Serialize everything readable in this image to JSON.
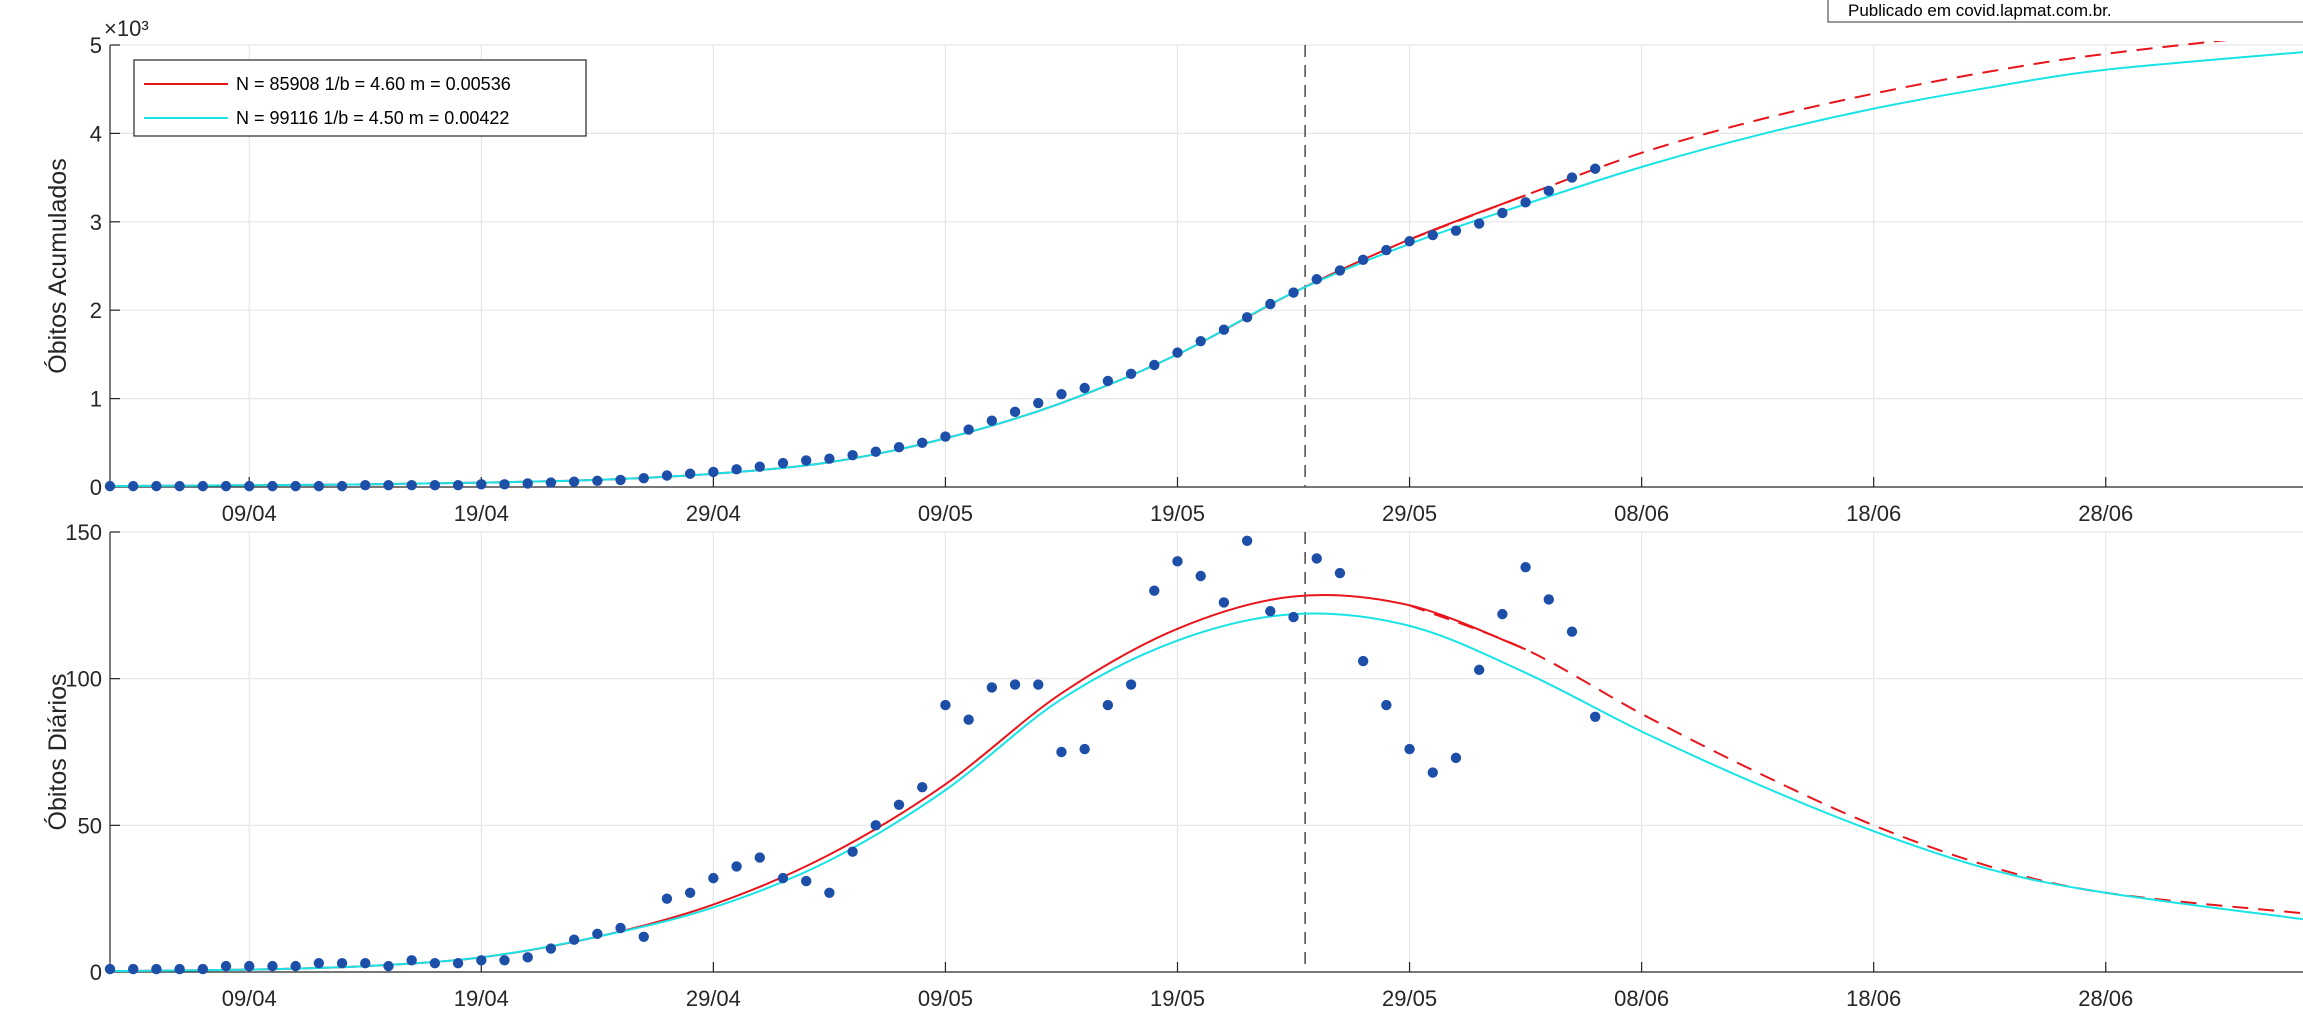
{
  "credit": "Publicado em covid.lapmat.com.br.",
  "colors": {
    "red_fit": "#e8151b",
    "cyan_fit": "#18e3e6",
    "points": "#1e4fa8",
    "grid": "#e6e6e6",
    "axis": "#262626",
    "vline": "#555555"
  },
  "legend": {
    "red_label": "N = 85908 1/b = 4.60 m = 0.00536",
    "cyan_label": "N = 99116 1/b = 4.50 m = 0.00422"
  },
  "top_axis": {
    "ylabel": "Óbitos Acumulados",
    "exponent": "×10³",
    "yticks": [
      "0",
      "1",
      "2",
      "3",
      "4",
      "5"
    ]
  },
  "bottom_axis": {
    "ylabel": "Óbitos Diários",
    "yticks": [
      "0",
      "50",
      "100",
      "150"
    ]
  },
  "x_ticks": [
    "09/04",
    "19/04",
    "29/04",
    "09/05",
    "19/05",
    "29/05",
    "08/06",
    "18/06",
    "28/06"
  ],
  "chart_data": [
    {
      "type": "line",
      "ylabel": "Óbitos Acumulados",
      "y_multiplier": 1000,
      "ylim": [
        0,
        5
      ],
      "x_day_offset_from_first_tick_range": [
        -6,
        88.5
      ],
      "x_tick_days": [
        0,
        10,
        20,
        30,
        40,
        50,
        60,
        70,
        80
      ],
      "vline_day": 45.5,
      "grid": true,
      "legend_position": "top-left",
      "series": [
        {
          "name": "N = 85908 1/b = 4.60 m = 0.00536",
          "x": [
            -6,
            0,
            5,
            10,
            15,
            20,
            25,
            30,
            35,
            40,
            45,
            50,
            55,
            60,
            65,
            70,
            75,
            80,
            88.5
          ],
          "y": [
            0.01,
            0.02,
            0.03,
            0.05,
            0.08,
            0.15,
            0.28,
            0.55,
            0.95,
            1.5,
            2.2,
            2.8,
            3.3,
            3.78,
            4.15,
            4.45,
            4.7,
            4.9,
            5.15
          ]
        },
        {
          "name": "N = 99116 1/b = 4.50 m = 0.00422",
          "x": [
            -6,
            0,
            5,
            10,
            15,
            20,
            25,
            30,
            35,
            40,
            45,
            50,
            55,
            60,
            65,
            70,
            75,
            80,
            88.5
          ],
          "y": [
            0.01,
            0.02,
            0.03,
            0.05,
            0.08,
            0.15,
            0.28,
            0.55,
            0.95,
            1.5,
            2.2,
            2.75,
            3.2,
            3.62,
            3.98,
            4.28,
            4.52,
            4.72,
            4.92
          ]
        },
        {
          "name": "",
          "type": "scatter",
          "x": [
            -6,
            -5,
            -4,
            -3,
            -2,
            -1,
            0,
            1,
            2,
            3,
            4,
            5,
            6,
            7,
            8,
            9,
            10,
            11,
            12,
            13,
            14,
            15,
            16,
            17,
            18,
            19,
            20,
            21,
            22,
            23,
            24,
            25,
            26,
            27,
            28,
            29,
            30,
            31,
            32,
            33,
            34,
            35,
            36,
            37,
            38,
            39,
            40,
            41,
            42,
            43,
            44,
            45,
            46,
            47,
            48,
            49,
            50,
            51,
            52,
            53,
            54,
            55,
            56,
            57,
            58
          ],
          "y": [
            0.01,
            0.01,
            0.01,
            0.01,
            0.01,
            0.01,
            0.01,
            0.01,
            0.01,
            0.01,
            0.01,
            0.02,
            0.02,
            0.02,
            0.02,
            0.02,
            0.03,
            0.03,
            0.04,
            0.05,
            0.06,
            0.07,
            0.08,
            0.1,
            0.13,
            0.15,
            0.17,
            0.2,
            0.23,
            0.27,
            0.3,
            0.32,
            0.36,
            0.4,
            0.45,
            0.5,
            0.57,
            0.65,
            0.75,
            0.85,
            0.95,
            1.05,
            1.12,
            1.2,
            1.28,
            1.38,
            1.52,
            1.65,
            1.78,
            1.92,
            2.07,
            2.2,
            2.35,
            2.45,
            2.57,
            2.68,
            2.78,
            2.85,
            2.9,
            2.98,
            3.1,
            3.22,
            3.35,
            3.5,
            3.6
          ]
        }
      ]
    },
    {
      "type": "line",
      "ylabel": "Óbitos Diários",
      "ylim": [
        0,
        150
      ],
      "x_day_offset_from_first_tick_range": [
        -6,
        88.5
      ],
      "x_tick_days": [
        0,
        10,
        20,
        30,
        40,
        50,
        60,
        70,
        80
      ],
      "vline_day": 45.5,
      "grid": true,
      "series": [
        {
          "name": "N = 85908 1/b = 4.60 m = 0.00536",
          "x": [
            -6,
            0,
            5,
            10,
            15,
            20,
            25,
            30,
            35,
            40,
            45,
            50,
            55,
            60,
            65,
            70,
            75,
            80,
            88.5
          ],
          "y": [
            0.3,
            0.8,
            2,
            5,
            12,
            23,
            40,
            64,
            95,
            117,
            128,
            125,
            110,
            88,
            68,
            50,
            36,
            27,
            20
          ]
        },
        {
          "name": "N = 99116 1/b = 4.50 m = 0.00422",
          "x": [
            -6,
            0,
            5,
            10,
            15,
            20,
            25,
            30,
            35,
            40,
            45,
            50,
            55,
            60,
            65,
            70,
            75,
            80,
            88.5
          ],
          "y": [
            0.3,
            0.8,
            2,
            5,
            12,
            22,
            38,
            62,
            93,
            113,
            122,
            118,
            102,
            82,
            64,
            48,
            35,
            27,
            18
          ]
        },
        {
          "name": "",
          "type": "scatter",
          "x": [
            -6,
            -5,
            -4,
            -3,
            -2,
            -1,
            0,
            1,
            2,
            3,
            4,
            5,
            6,
            7,
            8,
            9,
            10,
            11,
            12,
            13,
            14,
            15,
            16,
            17,
            18,
            19,
            20,
            21,
            22,
            23,
            24,
            25,
            26,
            27,
            28,
            29,
            30,
            31,
            32,
            33,
            34,
            35,
            36,
            37,
            38,
            39,
            40,
            41,
            42,
            43,
            44,
            45,
            46,
            47,
            48,
            49,
            50,
            51,
            52,
            53,
            54,
            55,
            56,
            57,
            58
          ],
          "y": [
            1,
            1,
            1,
            1,
            1,
            2,
            2,
            2,
            2,
            3,
            3,
            3,
            2,
            4,
            3,
            3,
            4,
            4,
            5,
            8,
            11,
            13,
            15,
            12,
            25,
            27,
            32,
            36,
            39,
            32,
            31,
            27,
            41,
            50,
            57,
            63,
            91,
            86,
            97,
            98,
            98,
            75,
            76,
            91,
            98,
            130,
            140,
            135,
            126,
            147,
            123,
            121,
            141,
            136,
            106,
            91,
            76,
            68,
            73,
            103,
            122,
            138,
            127,
            116,
            87
          ]
        }
      ]
    }
  ]
}
